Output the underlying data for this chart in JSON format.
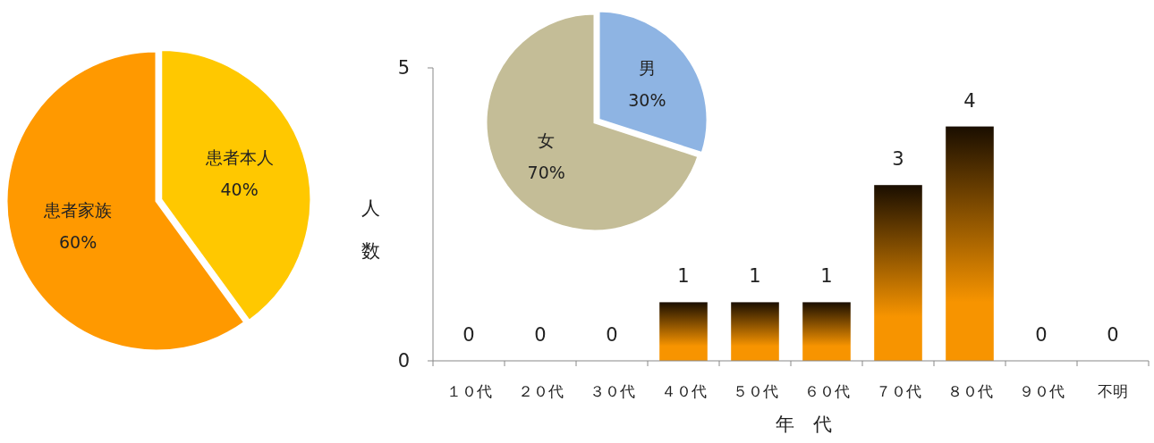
{
  "chart_data": [
    {
      "type": "pie",
      "categories": [
        "患者本人",
        "患者家族"
      ],
      "values": [
        40,
        60
      ],
      "value_labels": [
        "40%",
        "60%"
      ],
      "colors": [
        "#ffc800",
        "#ff9900"
      ]
    },
    {
      "type": "bar",
      "categories": [
        "１０代",
        "２０代",
        "３０代",
        "４０代",
        "５０代",
        "６０代",
        "７０代",
        "８０代",
        "９０代",
        "不明"
      ],
      "values": [
        0,
        0,
        0,
        1,
        1,
        1,
        3,
        4,
        0,
        0
      ],
      "color": "#f79400",
      "ylim": [
        0,
        5
      ],
      "yticks": [
        0,
        5
      ],
      "xlabel": "年　代",
      "ylabel": "人数",
      "data_labels": true
    },
    {
      "type": "pie",
      "categories": [
        "男",
        "女"
      ],
      "values": [
        30,
        70
      ],
      "value_labels": [
        "30%",
        "70%"
      ],
      "colors": [
        "#8eb4e3",
        "#c4bd97"
      ]
    }
  ]
}
